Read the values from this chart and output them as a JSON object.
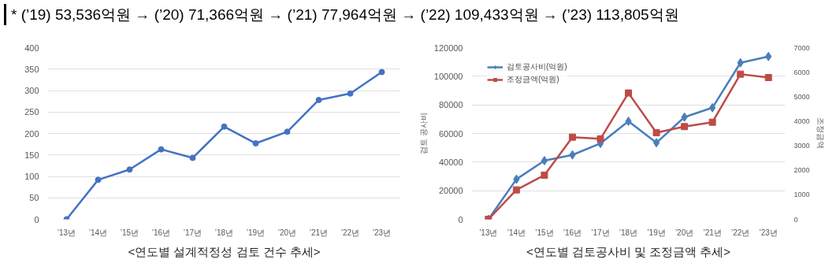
{
  "chart_data": [
    {
      "type": "line",
      "title": "<연도별 설계적정성 검토 건수 추세>",
      "annotations": [
        "* (’19) 53,536억원 → (’20) 71,366억원 → (’21) 77,964억원 → (’22) 109,433억원 → (’23) 113,805억원"
      ],
      "categories": [
        "’13년",
        "’14년",
        "’15년",
        "’16년",
        "’17년",
        "’18년",
        "’19년",
        "’20년",
        "’21년",
        "’22년",
        "’23년"
      ],
      "series": [
        {
          "color": "#4472c4",
          "values": [
            0,
            92,
            116,
            163,
            143,
            216,
            177,
            204,
            278,
            293,
            343
          ]
        }
      ],
      "ylim": [
        0,
        400
      ],
      "yticks": [
        0,
        50,
        100,
        150,
        200,
        250,
        300,
        350,
        400
      ],
      "grid": "y",
      "marker": "circle",
      "line_style": "solid",
      "legend": false
    },
    {
      "type": "line",
      "title": "<연도별 검토공사비 및 조정금액 추세>",
      "ylabel": "검토 공사비",
      "y2label": "조정금액",
      "categories": [
        "’13년",
        "’14년",
        "’15년",
        "’16년",
        "’17년",
        "’18년",
        "’19년",
        "’20년",
        "’21년",
        "’22년",
        "’23년"
      ],
      "series": [
        {
          "name": "검토공사비(억원)",
          "color": "#4a7ebb",
          "marker": "diamond",
          "values": [
            0,
            28000,
            41000,
            45000,
            53000,
            68500,
            53500,
            71400,
            78000,
            109400,
            113800
          ]
        },
        {
          "name": "조정금액(억원)",
          "color": "#be4b48",
          "marker": "square",
          "axis": "y2",
          "values": [
            0,
            1200,
            1800,
            3350,
            3280,
            5150,
            3530,
            3780,
            3960,
            5920,
            5780
          ]
        }
      ],
      "ylim": [
        0,
        120000
      ],
      "yticks": [
        0,
        20000,
        40000,
        60000,
        80000,
        100000,
        120000
      ],
      "y2lim": [
        0,
        7000
      ],
      "y2ticks": [
        0,
        1000,
        2000,
        3000,
        4000,
        5000,
        6000,
        7000
      ],
      "grid": "y",
      "line_style": "solid",
      "legend": "top left"
    }
  ]
}
